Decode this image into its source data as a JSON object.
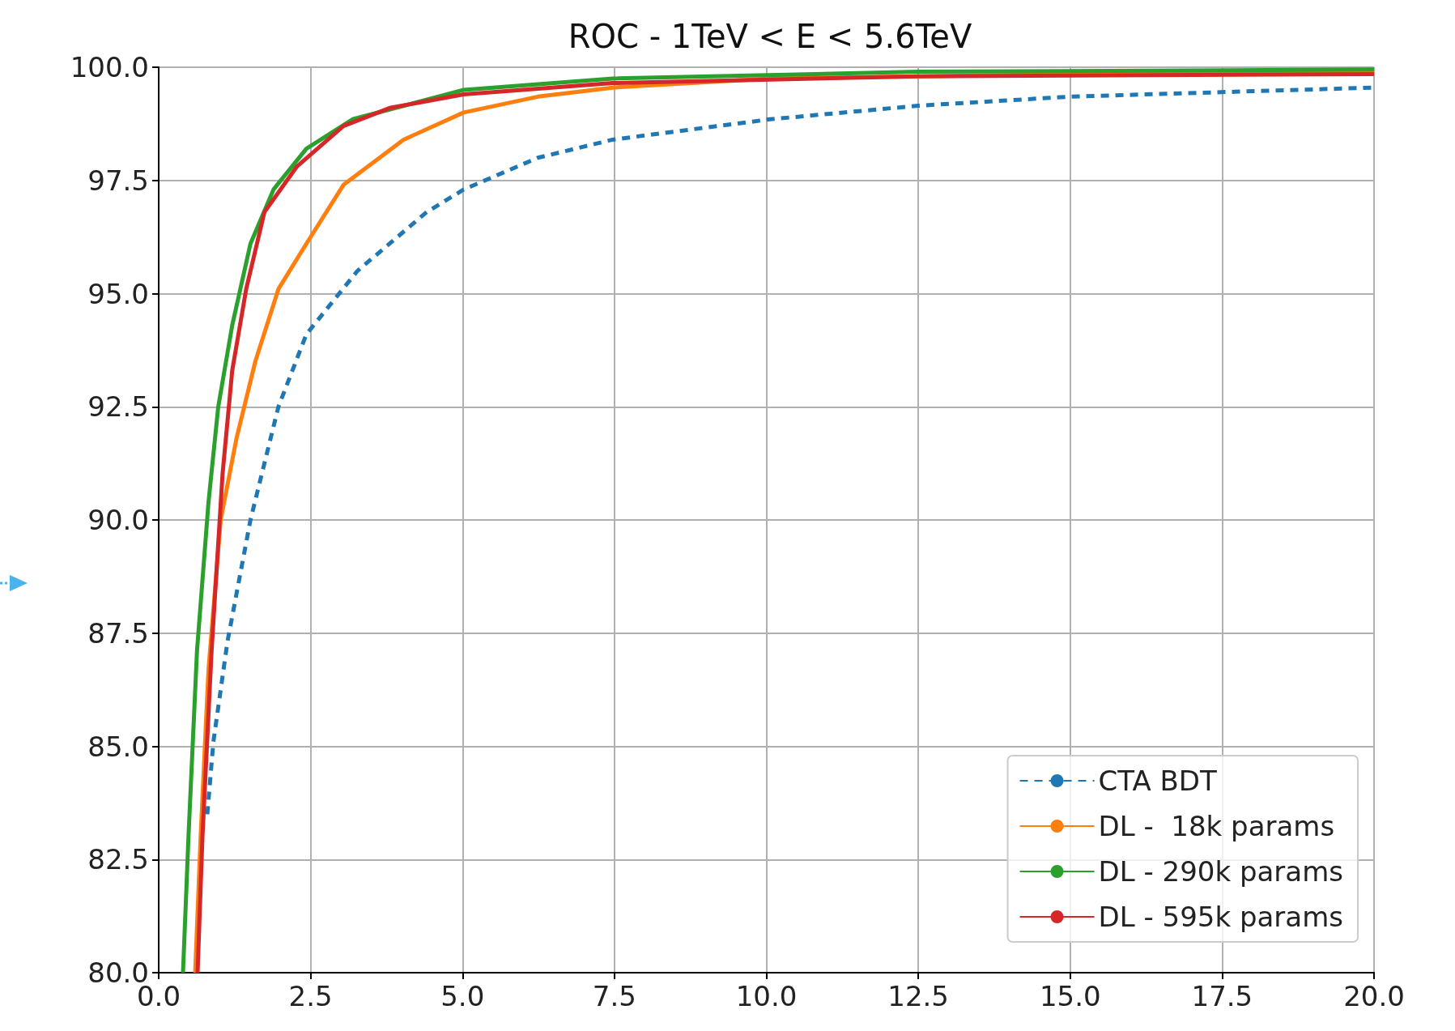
{
  "chart_data": {
    "type": "line",
    "title": "ROC - 1TeV < E < 5.6TeV",
    "xlim": [
      0,
      20
    ],
    "xticks": [
      {
        "value": 0,
        "label": "0.0"
      },
      {
        "value": 2.5,
        "label": "2.5"
      },
      {
        "value": 5,
        "label": "5.0"
      },
      {
        "value": 7.5,
        "label": "7.5"
      },
      {
        "value": 10,
        "label": "10.0"
      },
      {
        "value": 12.5,
        "label": "12.5"
      },
      {
        "value": 15,
        "label": "15.0"
      },
      {
        "value": 17.5,
        "label": "17.5"
      },
      {
        "value": 20,
        "label": "20.0"
      }
    ],
    "ylim": [
      80,
      100
    ],
    "yticks": [
      {
        "value": 80,
        "label": "80.0"
      },
      {
        "value": 82.5,
        "label": "82.5"
      },
      {
        "value": 85,
        "label": "85.0"
      },
      {
        "value": 87.5,
        "label": "87.5"
      },
      {
        "value": 90,
        "label": "90.0"
      },
      {
        "value": 92.5,
        "label": "92.5"
      },
      {
        "value": 95,
        "label": "95.0"
      },
      {
        "value": 97.5,
        "label": "97.5"
      },
      {
        "value": 100,
        "label": "100.0"
      }
    ],
    "grid": true,
    "legend": "bottom right",
    "marker": "none",
    "series": [
      {
        "name": "CTA BDT",
        "color": "#1f77b4",
        "line_style": "dashed",
        "x": [
          0.8,
          0.9,
          1.13,
          1.51,
          1.97,
          2.43,
          3.27,
          4.41,
          5.02,
          6.24,
          7.47,
          10.06,
          12.5,
          15,
          20
        ],
        "values": [
          83.5,
          85.1,
          87.3,
          90.0,
          92.5,
          94.1,
          95.5,
          96.8,
          97.3,
          98.0,
          98.4,
          98.85,
          99.15,
          99.35,
          99.55
        ]
      },
      {
        "name": "DL -  18k params",
        "color": "#ff7f0e",
        "line_style": "solid",
        "x": [
          0.6,
          0.69,
          0.82,
          1.02,
          1.28,
          1.59,
          1.97,
          2.43,
          3.04,
          4.03,
          5.02,
          6.24,
          7.47,
          10.06,
          15,
          20
        ],
        "values": [
          80,
          83.0,
          86.7,
          90.0,
          91.8,
          93.5,
          95.1,
          96.1,
          97.4,
          98.4,
          99.0,
          99.35,
          99.55,
          99.75,
          99.85,
          99.9
        ]
      },
      {
        "name": "DL - 290k params",
        "color": "#2ca02c",
        "line_style": "solid",
        "x": [
          0.4,
          0.49,
          0.63,
          0.82,
          0.98,
          1.21,
          1.51,
          1.89,
          2.43,
          3.19,
          5.02,
          7.47,
          12.5,
          20
        ],
        "values": [
          80,
          83.0,
          87.1,
          90.4,
          92.5,
          94.3,
          96.1,
          97.3,
          98.2,
          98.85,
          99.5,
          99.75,
          99.9,
          99.95
        ]
      },
      {
        "name": "DL - 595k params",
        "color": "#d62728",
        "line_style": "solid",
        "x": [
          0.64,
          0.72,
          0.87,
          1.05,
          1.21,
          1.44,
          1.74,
          2.27,
          3.04,
          3.8,
          5.02,
          7.47,
          12.5,
          20
        ],
        "values": [
          80,
          83.0,
          87.1,
          91.0,
          93.3,
          95.1,
          96.8,
          97.8,
          98.7,
          99.1,
          99.4,
          99.65,
          99.8,
          99.85
        ]
      }
    ]
  }
}
